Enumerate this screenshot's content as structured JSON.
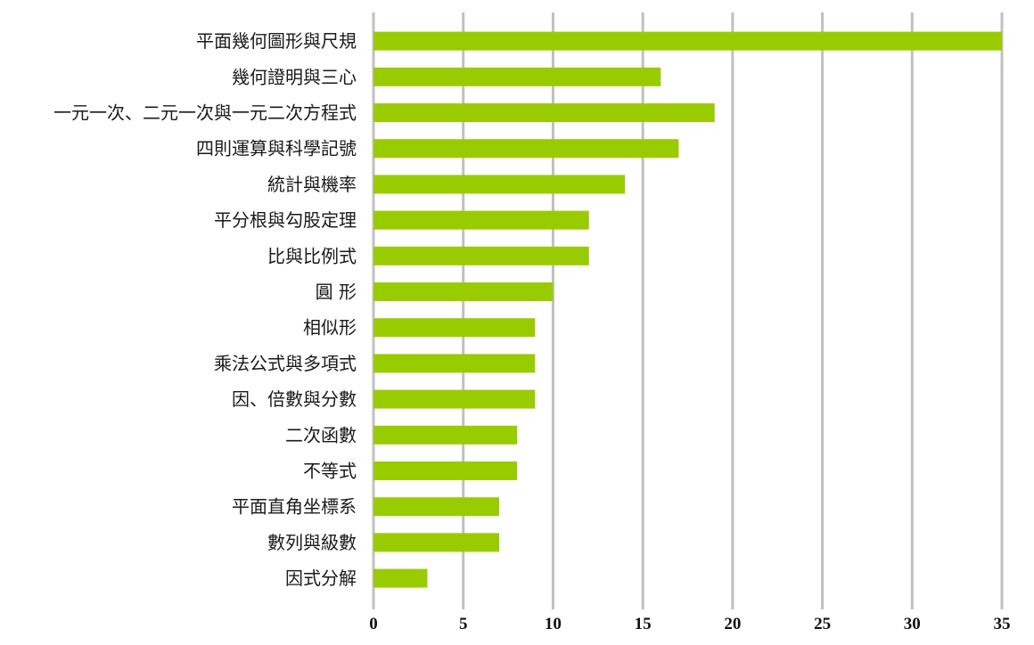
{
  "chart_data": {
    "type": "bar",
    "orientation": "horizontal",
    "title": "",
    "xlabel": "",
    "ylabel": "",
    "categories": [
      "平面幾何圖形與尺規",
      "幾何證明與三心",
      "一元一次、二元一次與一元二次方程式",
      "四則運算與科學記號",
      "統計與機率",
      "平分根與勾股定理",
      "比與比例式",
      "圓 形",
      "相似形",
      "乘法公式與多項式",
      "因、倍數與分數",
      "二次函數",
      "不等式",
      "平面直角坐標系",
      "數列與級數",
      "因式分解"
    ],
    "values": [
      35,
      16,
      19,
      17,
      14,
      12,
      12,
      10,
      9,
      9,
      9,
      8,
      8,
      7,
      7,
      3
    ],
    "xlim": [
      0,
      35
    ],
    "xticks": [
      "0",
      "5",
      "10",
      "15",
      "20",
      "25",
      "30",
      "35"
    ],
    "grid": "vertical",
    "bar_color": "#99cc00",
    "grid_color": "#c0c0c0"
  }
}
